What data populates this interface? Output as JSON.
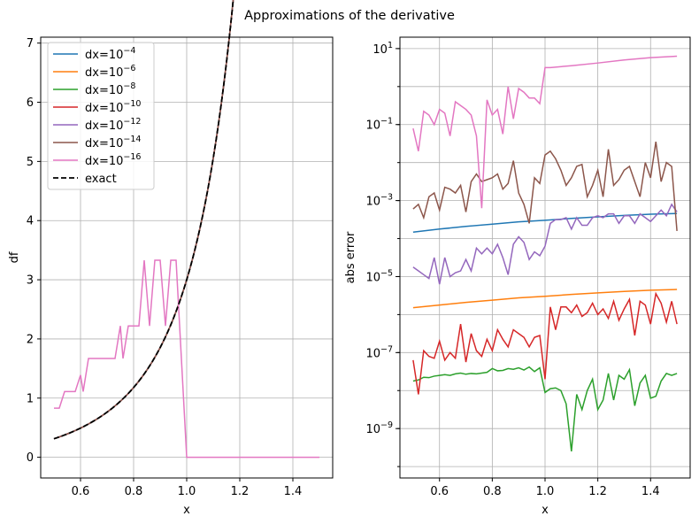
{
  "figure": {
    "suptitle": "Approximations of the derivative"
  },
  "chart_data": [
    {
      "type": "line",
      "title": "",
      "xlabel": "x",
      "ylabel": "df",
      "xlim": [
        0.45,
        1.55
      ],
      "ylim": [
        -0.35,
        7.1
      ],
      "xticks": [
        0.6,
        0.8,
        1.0,
        1.2,
        1.4
      ],
      "xtick_labels": [
        "0.6",
        "0.8",
        "1.0",
        "1.2",
        "1.4"
      ],
      "yticks": [
        0,
        1,
        2,
        3,
        4,
        5,
        6,
        7
      ],
      "ytick_labels": [
        "0",
        "1",
        "2",
        "3",
        "4",
        "5",
        "6",
        "7"
      ],
      "grid": true,
      "legend_position": "top-left",
      "colors": {
        "dx4": "#1f77b4",
        "dx6": "#ff7f0e",
        "dx8": "#2ca02c",
        "dx10": "#d62728",
        "dx12": "#9467bd",
        "dx14": "#8c564b",
        "dx16": "#e377c2",
        "exact": "#000000"
      },
      "legend": [
        {
          "key": "dx4",
          "base": "dx=10",
          "exp": "−4",
          "style": "solid"
        },
        {
          "key": "dx6",
          "base": "dx=10",
          "exp": "−6",
          "style": "solid"
        },
        {
          "key": "dx8",
          "base": "dx=10",
          "exp": "−8",
          "style": "solid"
        },
        {
          "key": "dx10",
          "base": "dx=10",
          "exp": "−10",
          "style": "solid"
        },
        {
          "key": "dx12",
          "base": "dx=10",
          "exp": "−12",
          "style": "solid"
        },
        {
          "key": "dx14",
          "base": "dx=10",
          "exp": "−14",
          "style": "solid"
        },
        {
          "key": "dx16",
          "base": "dx=10",
          "exp": "−16",
          "style": "solid"
        },
        {
          "key": "exact",
          "base": "exact",
          "exp": "",
          "style": "dashed"
        }
      ],
      "series": [
        {
          "key": "dx16",
          "x": [
            0.5,
            0.52,
            0.54,
            0.56,
            0.58,
            0.6,
            0.61,
            0.63,
            0.65,
            0.67,
            0.69,
            0.71,
            0.73,
            0.75,
            0.76,
            0.78,
            0.8,
            0.82,
            0.84,
            0.86,
            0.88,
            0.9,
            0.92,
            0.94,
            0.96,
            0.98,
            1.0,
            1.02,
            1.1,
            1.2,
            1.3,
            1.4,
            1.5
          ],
          "y": [
            0.83,
            0.83,
            1.11,
            1.11,
            1.11,
            1.39,
            1.11,
            1.67,
            1.67,
            1.67,
            1.67,
            1.67,
            1.67,
            2.22,
            1.67,
            2.22,
            2.22,
            2.22,
            3.33,
            2.22,
            3.33,
            3.33,
            2.22,
            3.33,
            3.33,
            1.67,
            0.0,
            0.0,
            0.0,
            0.0,
            0.0,
            0.0,
            0.0
          ]
        }
      ],
      "exact_function": "3x^2 * e^(x^3 - 1)"
    },
    {
      "type": "line",
      "title": "",
      "xlabel": "x",
      "ylabel": "abs error",
      "yscale": "log",
      "xlim": [
        0.45,
        1.55
      ],
      "ylim_log10": [
        -10.3,
        1.3
      ],
      "xticks": [
        0.6,
        0.8,
        1.0,
        1.2,
        1.4
      ],
      "xtick_labels": [
        "0.6",
        "0.8",
        "1.0",
        "1.2",
        "1.4"
      ],
      "yticks_exp": [
        1,
        -1,
        -3,
        -5,
        -7,
        -9
      ],
      "ytick_labels": [
        "1",
        "−1",
        "−3",
        "−5",
        "−7",
        "−9"
      ],
      "grid": true,
      "series": [
        {
          "key": "dx4",
          "x": [
            0.5,
            0.6,
            0.7,
            0.8,
            0.9,
            1.0,
            1.1,
            1.2,
            1.3,
            1.4,
            1.5
          ],
          "log10_y": [
            -3.83,
            -3.75,
            -3.68,
            -3.62,
            -3.56,
            -3.52,
            -3.47,
            -3.43,
            -3.39,
            -3.36,
            -3.34
          ]
        },
        {
          "key": "dx6",
          "x": [
            0.5,
            0.6,
            0.7,
            0.8,
            0.9,
            1.0,
            1.1,
            1.2,
            1.3,
            1.4,
            1.5
          ],
          "log10_y": [
            -5.82,
            -5.75,
            -5.68,
            -5.62,
            -5.56,
            -5.52,
            -5.47,
            -5.43,
            -5.39,
            -5.36,
            -5.34
          ]
        },
        {
          "key": "dx8",
          "x": [
            0.5,
            0.52,
            0.54,
            0.56,
            0.58,
            0.6,
            0.62,
            0.64,
            0.66,
            0.68,
            0.7,
            0.72,
            0.74,
            0.76,
            0.78,
            0.8,
            0.82,
            0.84,
            0.86,
            0.88,
            0.9,
            0.92,
            0.94,
            0.96,
            0.98,
            1.0,
            1.02,
            1.04,
            1.06,
            1.08,
            1.1,
            1.12,
            1.14,
            1.16,
            1.18,
            1.2,
            1.22,
            1.24,
            1.26,
            1.28,
            1.3,
            1.32,
            1.34,
            1.36,
            1.38,
            1.4,
            1.42,
            1.44,
            1.46,
            1.48,
            1.5
          ],
          "log10_y": [
            -7.75,
            -7.72,
            -7.65,
            -7.66,
            -7.62,
            -7.6,
            -7.58,
            -7.6,
            -7.56,
            -7.54,
            -7.57,
            -7.55,
            -7.56,
            -7.54,
            -7.52,
            -7.42,
            -7.48,
            -7.47,
            -7.42,
            -7.44,
            -7.4,
            -7.46,
            -7.38,
            -7.5,
            -7.4,
            -8.05,
            -7.95,
            -7.93,
            -8.0,
            -8.35,
            -9.6,
            -8.1,
            -8.5,
            -8.0,
            -7.7,
            -8.5,
            -8.25,
            -7.55,
            -8.25,
            -7.6,
            -7.7,
            -7.45,
            -8.4,
            -7.8,
            -7.6,
            -8.2,
            -8.15,
            -7.75,
            -7.55,
            -7.6,
            -7.55
          ]
        },
        {
          "key": "dx10",
          "x": [
            0.5,
            0.52,
            0.54,
            0.56,
            0.58,
            0.6,
            0.62,
            0.64,
            0.66,
            0.68,
            0.7,
            0.72,
            0.74,
            0.76,
            0.78,
            0.8,
            0.82,
            0.84,
            0.86,
            0.88,
            0.9,
            0.92,
            0.94,
            0.96,
            0.98,
            1.0,
            1.02,
            1.04,
            1.06,
            1.08,
            1.1,
            1.12,
            1.14,
            1.16,
            1.18,
            1.2,
            1.22,
            1.24,
            1.26,
            1.28,
            1.3,
            1.32,
            1.34,
            1.36,
            1.38,
            1.4,
            1.42,
            1.44,
            1.46,
            1.48,
            1.5
          ],
          "log10_y": [
            -7.2,
            -8.1,
            -6.95,
            -7.1,
            -7.15,
            -6.7,
            -7.2,
            -7.0,
            -7.15,
            -6.25,
            -7.25,
            -6.5,
            -6.95,
            -7.1,
            -6.65,
            -6.95,
            -6.4,
            -6.65,
            -6.85,
            -6.4,
            -6.5,
            -6.6,
            -6.85,
            -6.6,
            -6.55,
            -7.7,
            -5.8,
            -6.4,
            -5.8,
            -5.8,
            -5.95,
            -5.75,
            -6.05,
            -5.95,
            -5.7,
            -6.0,
            -5.85,
            -6.1,
            -5.65,
            -6.15,
            -5.85,
            -5.6,
            -6.55,
            -5.65,
            -5.75,
            -6.25,
            -5.45,
            -5.7,
            -6.2,
            -5.65,
            -6.25
          ]
        },
        {
          "key": "dx12",
          "x": [
            0.5,
            0.52,
            0.54,
            0.56,
            0.58,
            0.6,
            0.62,
            0.64,
            0.66,
            0.68,
            0.7,
            0.72,
            0.74,
            0.76,
            0.78,
            0.8,
            0.82,
            0.84,
            0.86,
            0.88,
            0.9,
            0.92,
            0.94,
            0.96,
            0.98,
            1.0,
            1.02,
            1.04,
            1.06,
            1.08,
            1.1,
            1.12,
            1.14,
            1.16,
            1.18,
            1.2,
            1.22,
            1.24,
            1.26,
            1.28,
            1.3,
            1.32,
            1.34,
            1.36,
            1.38,
            1.4,
            1.42,
            1.44,
            1.46,
            1.48,
            1.5
          ],
          "log10_y": [
            -4.75,
            -4.85,
            -4.95,
            -5.05,
            -4.5,
            -5.2,
            -4.5,
            -5.0,
            -4.9,
            -4.85,
            -4.55,
            -4.85,
            -4.25,
            -4.4,
            -4.25,
            -4.4,
            -4.15,
            -4.5,
            -4.95,
            -4.15,
            -3.95,
            -4.1,
            -4.55,
            -4.35,
            -4.45,
            -4.2,
            -3.6,
            -3.5,
            -3.5,
            -3.45,
            -3.75,
            -3.45,
            -3.65,
            -3.65,
            -3.45,
            -3.4,
            -3.45,
            -3.35,
            -3.35,
            -3.6,
            -3.4,
            -3.4,
            -3.6,
            -3.35,
            -3.45,
            -3.55,
            -3.4,
            -3.25,
            -3.4,
            -3.1,
            -3.3
          ]
        },
        {
          "key": "dx14",
          "x": [
            0.5,
            0.52,
            0.54,
            0.56,
            0.58,
            0.6,
            0.62,
            0.64,
            0.66,
            0.68,
            0.7,
            0.72,
            0.74,
            0.76,
            0.78,
            0.8,
            0.82,
            0.84,
            0.86,
            0.88,
            0.9,
            0.92,
            0.94,
            0.96,
            0.98,
            1.0,
            1.02,
            1.04,
            1.06,
            1.08,
            1.1,
            1.12,
            1.14,
            1.16,
            1.18,
            1.2,
            1.22,
            1.24,
            1.26,
            1.28,
            1.3,
            1.32,
            1.34,
            1.36,
            1.38,
            1.4,
            1.42,
            1.44,
            1.46,
            1.48,
            1.5
          ],
          "log10_y": [
            -3.22,
            -3.1,
            -3.45,
            -2.9,
            -2.8,
            -3.25,
            -2.65,
            -2.7,
            -2.8,
            -2.6,
            -3.3,
            -2.5,
            -2.3,
            -2.5,
            -2.45,
            -2.4,
            -2.3,
            -2.7,
            -2.55,
            -1.95,
            -2.8,
            -3.1,
            -3.6,
            -2.4,
            -2.55,
            -1.8,
            -1.7,
            -1.9,
            -2.2,
            -2.6,
            -2.4,
            -2.1,
            -2.05,
            -2.9,
            -2.6,
            -2.2,
            -2.9,
            -1.65,
            -2.6,
            -2.45,
            -2.2,
            -2.1,
            -2.5,
            -2.9,
            -2.0,
            -2.4,
            -1.45,
            -2.5,
            -2.0,
            -2.1,
            -3.8
          ]
        },
        {
          "key": "dx16",
          "x": [
            0.5,
            0.52,
            0.54,
            0.56,
            0.58,
            0.6,
            0.62,
            0.64,
            0.66,
            0.68,
            0.7,
            0.72,
            0.74,
            0.76,
            0.78,
            0.8,
            0.82,
            0.84,
            0.86,
            0.88,
            0.9,
            0.92,
            0.94,
            0.96,
            0.98,
            1.0,
            1.02,
            1.1,
            1.2,
            1.3,
            1.4,
            1.5
          ],
          "log10_y": [
            -1.1,
            -1.7,
            -0.65,
            -0.75,
            -1.0,
            -0.6,
            -0.7,
            -1.3,
            -0.4,
            -0.5,
            -0.6,
            -0.75,
            -1.3,
            -3.2,
            -0.35,
            -0.75,
            -0.6,
            -1.25,
            0.0,
            -0.85,
            -0.05,
            -0.15,
            -0.3,
            -0.3,
            -0.45,
            0.5,
            0.5,
            0.55,
            0.62,
            0.7,
            0.76,
            0.8
          ]
        }
      ]
    }
  ]
}
